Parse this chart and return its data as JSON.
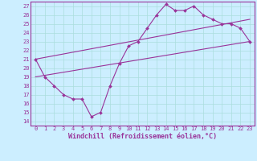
{
  "xlabel": "Windchill (Refroidissement éolien,°C)",
  "bg_color": "#cceeff",
  "grid_color": "#aadddd",
  "line_color": "#993399",
  "spine_color": "#993399",
  "xlim": [
    -0.5,
    23.5
  ],
  "ylim": [
    13.5,
    27.5
  ],
  "xticks": [
    0,
    1,
    2,
    3,
    4,
    5,
    6,
    7,
    8,
    9,
    10,
    11,
    12,
    13,
    14,
    15,
    16,
    17,
    18,
    19,
    20,
    21,
    22,
    23
  ],
  "yticks": [
    14,
    15,
    16,
    17,
    18,
    19,
    20,
    21,
    22,
    23,
    24,
    25,
    26,
    27
  ],
  "series1_x": [
    0,
    1,
    2,
    3,
    4,
    5,
    6,
    7,
    8,
    9,
    10,
    11,
    12,
    13,
    14,
    15,
    16,
    17,
    18,
    19,
    20,
    21,
    22,
    23
  ],
  "series1_y": [
    21,
    19,
    18,
    17,
    16.5,
    16.5,
    14.5,
    15,
    18,
    20.5,
    22.5,
    23,
    24.5,
    26,
    27.2,
    26.5,
    26.5,
    27,
    26,
    25.5,
    25,
    25,
    24.5,
    23
  ],
  "series2_x": [
    0,
    23
  ],
  "series2_y": [
    19.0,
    23.0
  ],
  "series3_x": [
    0,
    23
  ],
  "series3_y": [
    21.0,
    25.5
  ],
  "tick_fontsize": 5,
  "xlabel_fontsize": 6,
  "xlabel_fontweight": "bold"
}
